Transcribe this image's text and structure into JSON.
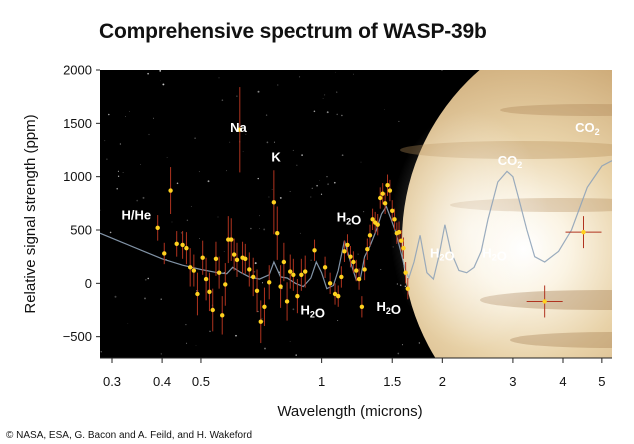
{
  "title": "Comprehensive spectrum of WASP-39b",
  "credit": "© NASA, ESA, G. Bacon and A. Feild, and H. Wakeford",
  "colors": {
    "background": "#000000",
    "data_point": "#ffd21f",
    "error_bar": "#b0331f",
    "model_line": "#8fa3b8",
    "text_light": "#ffffff",
    "planet": "#c9a877"
  },
  "chart_data": {
    "type": "scatter",
    "title": "Comprehensive spectrum of WASP-39b",
    "xlabel": "Wavelength (microns)",
    "ylabel": "Relative signal strength (ppm)",
    "xscale": "log",
    "xlim": [
      0.28,
      5.3
    ],
    "ylim": [
      -700,
      2000
    ],
    "xticks": [
      0.3,
      0.4,
      0.5,
      1,
      1.5,
      2,
      3,
      4,
      5
    ],
    "xtick_labels": [
      "0.3",
      "0.4",
      "0.5",
      "1",
      "1.5",
      "2",
      "3",
      "4",
      "5"
    ],
    "yticks": [
      2000,
      1500,
      1000,
      500,
      0,
      -500
    ],
    "ytick_labels": [
      "2000",
      "1500",
      "1000",
      "500",
      "0",
      "−500"
    ],
    "annotations": [
      {
        "text": "H/He",
        "x": 0.345,
        "y": 600
      },
      {
        "text": "Na",
        "x": 0.62,
        "y": 1420
      },
      {
        "text": "K",
        "x": 0.77,
        "y": 1140
      },
      {
        "text": "H₂O",
        "x": 1.17,
        "y": 580
      },
      {
        "text": "H₂O",
        "x": 0.95,
        "y": -290
      },
      {
        "text": "H₂O",
        "x": 1.47,
        "y": -260
      },
      {
        "text": "H₂O",
        "x": 2.0,
        "y": 240
      },
      {
        "text": "H₂O",
        "x": 2.7,
        "y": 240
      },
      {
        "text": "CO₂",
        "x": 2.95,
        "y": 1110
      },
      {
        "text": "CO₂",
        "x": 4.6,
        "y": 1420
      }
    ],
    "series": [
      {
        "type": "scatter",
        "points": [
          {
            "x": 0.39,
            "y": 520,
            "err": 120
          },
          {
            "x": 0.405,
            "y": 280,
            "err": 100
          },
          {
            "x": 0.42,
            "y": 870,
            "err": 220
          },
          {
            "x": 0.435,
            "y": 370,
            "err": 120
          },
          {
            "x": 0.45,
            "y": 360,
            "err": 130
          },
          {
            "x": 0.46,
            "y": 330,
            "err": 150
          },
          {
            "x": 0.47,
            "y": 150,
            "err": 180
          },
          {
            "x": 0.48,
            "y": 120,
            "err": 150
          },
          {
            "x": 0.49,
            "y": -100,
            "err": 200
          },
          {
            "x": 0.505,
            "y": 240,
            "err": 160
          },
          {
            "x": 0.515,
            "y": 40,
            "err": 200
          },
          {
            "x": 0.525,
            "y": -80,
            "err": 180
          },
          {
            "x": 0.535,
            "y": -250,
            "err": 200
          },
          {
            "x": 0.545,
            "y": 230,
            "err": 160
          },
          {
            "x": 0.555,
            "y": 100,
            "err": 150
          },
          {
            "x": 0.565,
            "y": -300,
            "err": 180
          },
          {
            "x": 0.575,
            "y": -10,
            "err": 200
          },
          {
            "x": 0.585,
            "y": 410,
            "err": 220
          },
          {
            "x": 0.595,
            "y": 410,
            "err": 200
          },
          {
            "x": 0.605,
            "y": 270,
            "err": 150
          },
          {
            "x": 0.615,
            "y": 220,
            "err": 160
          },
          {
            "x": 0.625,
            "y": 1440,
            "err": 400
          },
          {
            "x": 0.635,
            "y": 240,
            "err": 150
          },
          {
            "x": 0.645,
            "y": 230,
            "err": 140
          },
          {
            "x": 0.66,
            "y": 130,
            "err": 160
          },
          {
            "x": 0.675,
            "y": 60,
            "err": 180
          },
          {
            "x": 0.69,
            "y": -70,
            "err": 200
          },
          {
            "x": 0.705,
            "y": -360,
            "err": 200
          },
          {
            "x": 0.72,
            "y": -220,
            "err": 180
          },
          {
            "x": 0.74,
            "y": 10,
            "err": 160
          },
          {
            "x": 0.76,
            "y": 760,
            "err": 300
          },
          {
            "x": 0.775,
            "y": 470,
            "err": 250
          },
          {
            "x": 0.79,
            "y": -30,
            "err": 200
          },
          {
            "x": 0.805,
            "y": 200,
            "err": 180
          },
          {
            "x": 0.82,
            "y": -170,
            "err": 180
          },
          {
            "x": 0.835,
            "y": 110,
            "err": 160
          },
          {
            "x": 0.85,
            "y": 80,
            "err": 150
          },
          {
            "x": 0.87,
            "y": -120,
            "err": 160
          },
          {
            "x": 0.89,
            "y": 80,
            "err": 150
          },
          {
            "x": 0.91,
            "y": 110,
            "err": 150
          },
          {
            "x": 0.96,
            "y": 310,
            "err": 100
          },
          {
            "x": 1.02,
            "y": 150,
            "err": 100
          },
          {
            "x": 1.05,
            "y": 0,
            "err": 100
          },
          {
            "x": 1.08,
            "y": -100,
            "err": 100
          },
          {
            "x": 1.1,
            "y": -120,
            "err": 100
          },
          {
            "x": 1.12,
            "y": 60,
            "err": 100
          },
          {
            "x": 1.14,
            "y": 300,
            "err": 100
          },
          {
            "x": 1.16,
            "y": 360,
            "err": 100
          },
          {
            "x": 1.18,
            "y": 250,
            "err": 100
          },
          {
            "x": 1.2,
            "y": 200,
            "err": 100
          },
          {
            "x": 1.22,
            "y": 120,
            "err": 100
          },
          {
            "x": 1.24,
            "y": 40,
            "err": 100
          },
          {
            "x": 1.26,
            "y": -220,
            "err": 100
          },
          {
            "x": 1.28,
            "y": 130,
            "err": 100
          },
          {
            "x": 1.3,
            "y": 320,
            "err": 100
          },
          {
            "x": 1.32,
            "y": 450,
            "err": 100
          },
          {
            "x": 1.34,
            "y": 600,
            "err": 100
          },
          {
            "x": 1.36,
            "y": 570,
            "err": 100
          },
          {
            "x": 1.38,
            "y": 550,
            "err": 100
          },
          {
            "x": 1.4,
            "y": 800,
            "err": 100
          },
          {
            "x": 1.42,
            "y": 840,
            "err": 100
          },
          {
            "x": 1.44,
            "y": 750,
            "err": 100
          },
          {
            "x": 1.46,
            "y": 920,
            "err": 100
          },
          {
            "x": 1.48,
            "y": 870,
            "err": 100
          },
          {
            "x": 1.5,
            "y": 680,
            "err": 100
          },
          {
            "x": 1.52,
            "y": 600,
            "err": 100
          },
          {
            "x": 1.54,
            "y": 470,
            "err": 100
          },
          {
            "x": 1.56,
            "y": 480,
            "err": 100
          },
          {
            "x": 1.58,
            "y": 400,
            "err": 100
          },
          {
            "x": 1.6,
            "y": 330,
            "err": 100
          },
          {
            "x": 1.62,
            "y": 100,
            "err": 100
          },
          {
            "x": 1.64,
            "y": -50,
            "err": 100
          },
          {
            "x": 3.6,
            "y": -170,
            "err": 150
          },
          {
            "x": 4.5,
            "y": 480,
            "err": 150
          }
        ]
      },
      {
        "type": "line",
        "x": [
          0.28,
          0.32,
          0.36,
          0.4,
          0.45,
          0.5,
          0.55,
          0.58,
          0.6,
          0.63,
          0.66,
          0.7,
          0.74,
          0.76,
          0.79,
          0.82,
          0.86,
          0.9,
          0.94,
          0.97,
          1.0,
          1.03,
          1.07,
          1.1,
          1.14,
          1.18,
          1.22,
          1.25,
          1.28,
          1.32,
          1.37,
          1.41,
          1.45,
          1.49,
          1.53,
          1.57,
          1.61,
          1.65,
          1.7,
          1.76,
          1.83,
          1.9,
          1.96,
          2.03,
          2.1,
          2.2,
          2.3,
          2.4,
          2.5,
          2.6,
          2.75,
          2.9,
          3.0,
          3.1,
          3.25,
          3.4,
          3.6,
          3.9,
          4.2,
          4.6,
          5.0,
          5.3
        ],
        "y": [
          470,
          380,
          300,
          230,
          170,
          130,
          100,
          90,
          150,
          100,
          60,
          40,
          80,
          200,
          60,
          50,
          0,
          -30,
          50,
          200,
          100,
          -50,
          -20,
          120,
          400,
          200,
          30,
          50,
          250,
          350,
          500,
          650,
          720,
          600,
          480,
          320,
          150,
          50,
          200,
          450,
          100,
          40,
          250,
          550,
          300,
          120,
          100,
          150,
          300,
          600,
          950,
          1050,
          1000,
          800,
          500,
          250,
          200,
          300,
          500,
          900,
          1100,
          1150
        ]
      }
    ]
  }
}
